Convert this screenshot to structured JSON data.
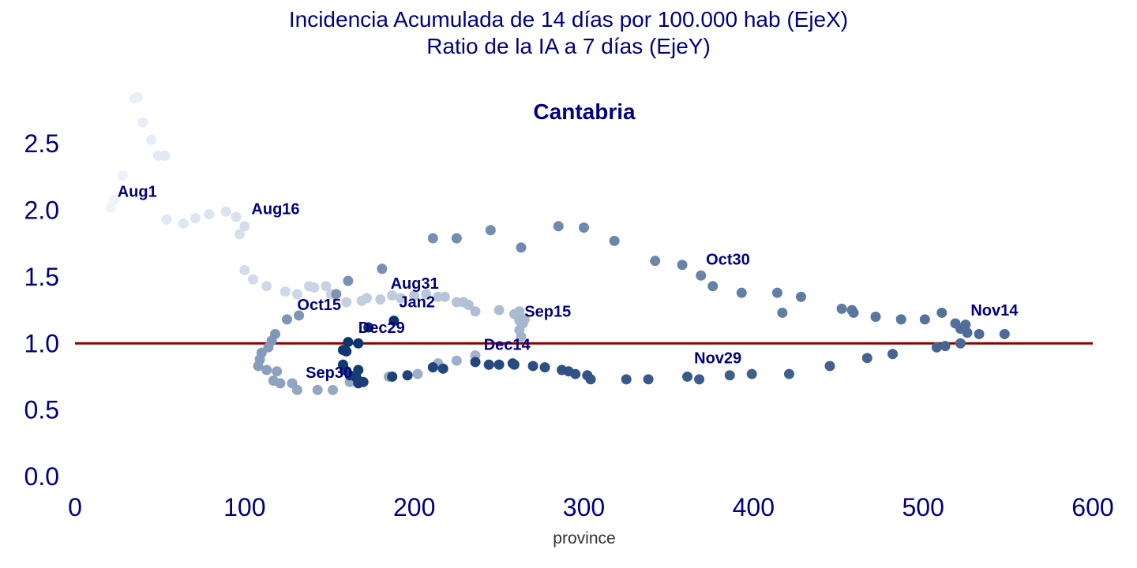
{
  "figure": {
    "title_line1": "Incidencia Acumulada de 14 días por 100.000 hab (EjeX)",
    "title_line2": "Ratio de la IA a 7 días (EjeY)"
  },
  "chart_data": {
    "type": "scatter",
    "title": "Cantabria",
    "xlabel": "province",
    "ylabel": "",
    "xlim": [
      0,
      600
    ],
    "ylim": [
      0.0,
      2.75
    ],
    "x_ticks": [
      0,
      100,
      200,
      300,
      400,
      500,
      600
    ],
    "y_ticks": [
      0.0,
      0.5,
      1.0,
      1.5,
      2.0,
      2.5
    ],
    "x_tick_labels": [
      "0",
      "100",
      "200",
      "300",
      "400",
      "500",
      "600"
    ],
    "y_tick_labels": [
      "0.0",
      "0.5",
      "1.0",
      "1.5",
      "2.0",
      "2.5"
    ],
    "grid": false,
    "reference_line": {
      "y": 1.0,
      "color": "#8b0000"
    },
    "colormap": {
      "from": "#eef4fb",
      "to": "#08306b"
    },
    "points": [
      {
        "x": 21,
        "y": 2.02
      },
      {
        "x": 23,
        "y": 2.08
      },
      {
        "x": 28,
        "y": 2.26
      },
      {
        "x": 35,
        "y": 2.84
      },
      {
        "x": 37,
        "y": 2.85
      },
      {
        "x": 40,
        "y": 2.66
      },
      {
        "x": 45,
        "y": 2.53
      },
      {
        "x": 49,
        "y": 2.41
      },
      {
        "x": 53,
        "y": 2.41
      },
      {
        "x": 54,
        "y": 1.93
      },
      {
        "x": 64,
        "y": 1.9
      },
      {
        "x": 71,
        "y": 1.94
      },
      {
        "x": 79,
        "y": 1.97
      },
      {
        "x": 89,
        "y": 1.99
      },
      {
        "x": 95,
        "y": 1.95
      },
      {
        "x": 97,
        "y": 1.82
      },
      {
        "x": 100,
        "y": 1.88
      },
      {
        "x": 100,
        "y": 1.55
      },
      {
        "x": 105,
        "y": 1.48
      },
      {
        "x": 113,
        "y": 1.43
      },
      {
        "x": 124,
        "y": 1.39
      },
      {
        "x": 131,
        "y": 1.37
      },
      {
        "x": 138,
        "y": 1.43
      },
      {
        "x": 141,
        "y": 1.42
      },
      {
        "x": 148,
        "y": 1.43
      },
      {
        "x": 151,
        "y": 1.37
      },
      {
        "x": 160,
        "y": 1.31
      },
      {
        "x": 169,
        "y": 1.32
      },
      {
        "x": 172,
        "y": 1.34
      },
      {
        "x": 180,
        "y": 1.33
      },
      {
        "x": 187,
        "y": 1.36
      },
      {
        "x": 192,
        "y": 1.34
      },
      {
        "x": 200,
        "y": 1.36
      },
      {
        "x": 207,
        "y": 1.37
      },
      {
        "x": 214,
        "y": 1.35
      },
      {
        "x": 218,
        "y": 1.35
      },
      {
        "x": 225,
        "y": 1.31
      },
      {
        "x": 229,
        "y": 1.31
      },
      {
        "x": 232,
        "y": 1.29
      },
      {
        "x": 236,
        "y": 1.24
      },
      {
        "x": 250,
        "y": 1.25
      },
      {
        "x": 259,
        "y": 1.22
      },
      {
        "x": 262,
        "y": 1.24
      },
      {
        "x": 262,
        "y": 1.17
      },
      {
        "x": 265,
        "y": 1.18
      },
      {
        "x": 264,
        "y": 1.15
      },
      {
        "x": 262,
        "y": 1.1
      },
      {
        "x": 263,
        "y": 1.05
      },
      {
        "x": 236,
        "y": 0.91
      },
      {
        "x": 225,
        "y": 0.87
      },
      {
        "x": 214,
        "y": 0.85
      },
      {
        "x": 202,
        "y": 0.77
      },
      {
        "x": 185,
        "y": 0.75
      },
      {
        "x": 169,
        "y": 0.71
      },
      {
        "x": 162,
        "y": 0.71
      },
      {
        "x": 152,
        "y": 0.65
      },
      {
        "x": 143,
        "y": 0.65
      },
      {
        "x": 131,
        "y": 0.65
      },
      {
        "x": 128,
        "y": 0.7
      },
      {
        "x": 121,
        "y": 0.7
      },
      {
        "x": 117,
        "y": 0.72
      },
      {
        "x": 119,
        "y": 0.79
      },
      {
        "x": 113,
        "y": 0.8
      },
      {
        "x": 108,
        "y": 0.83
      },
      {
        "x": 109,
        "y": 0.88
      },
      {
        "x": 110,
        "y": 0.93
      },
      {
        "x": 114,
        "y": 0.97
      },
      {
        "x": 116,
        "y": 1.02
      },
      {
        "x": 118,
        "y": 1.07
      },
      {
        "x": 125,
        "y": 1.18
      },
      {
        "x": 132,
        "y": 1.21
      },
      {
        "x": 154,
        "y": 1.37
      },
      {
        "x": 161,
        "y": 1.47
      },
      {
        "x": 181,
        "y": 1.56
      },
      {
        "x": 211,
        "y": 1.79
      },
      {
        "x": 225,
        "y": 1.79
      },
      {
        "x": 245,
        "y": 1.85
      },
      {
        "x": 263,
        "y": 1.72
      },
      {
        "x": 285,
        "y": 1.88
      },
      {
        "x": 300,
        "y": 1.87
      },
      {
        "x": 318,
        "y": 1.77
      },
      {
        "x": 342,
        "y": 1.62
      },
      {
        "x": 358,
        "y": 1.59
      },
      {
        "x": 369,
        "y": 1.51
      },
      {
        "x": 376,
        "y": 1.43
      },
      {
        "x": 393,
        "y": 1.38
      },
      {
        "x": 414,
        "y": 1.38
      },
      {
        "x": 417,
        "y": 1.23
      },
      {
        "x": 428,
        "y": 1.35
      },
      {
        "x": 452,
        "y": 1.26
      },
      {
        "x": 458,
        "y": 1.25
      },
      {
        "x": 459,
        "y": 1.23
      },
      {
        "x": 472,
        "y": 1.2
      },
      {
        "x": 487,
        "y": 1.18
      },
      {
        "x": 501,
        "y": 1.18
      },
      {
        "x": 511,
        "y": 1.23
      },
      {
        "x": 519,
        "y": 1.15
      },
      {
        "x": 522,
        "y": 1.11
      },
      {
        "x": 525,
        "y": 1.14
      },
      {
        "x": 526,
        "y": 1.08
      },
      {
        "x": 533,
        "y": 1.07
      },
      {
        "x": 548,
        "y": 1.07
      },
      {
        "x": 522,
        "y": 1.0
      },
      {
        "x": 513,
        "y": 0.98
      },
      {
        "x": 508,
        "y": 0.97
      },
      {
        "x": 482,
        "y": 0.92
      },
      {
        "x": 467,
        "y": 0.89
      },
      {
        "x": 445,
        "y": 0.83
      },
      {
        "x": 421,
        "y": 0.77
      },
      {
        "x": 399,
        "y": 0.77
      },
      {
        "x": 386,
        "y": 0.76
      },
      {
        "x": 368,
        "y": 0.73
      },
      {
        "x": 361,
        "y": 0.75
      },
      {
        "x": 338,
        "y": 0.73
      },
      {
        "x": 325,
        "y": 0.73
      },
      {
        "x": 304,
        "y": 0.73
      },
      {
        "x": 302,
        "y": 0.76
      },
      {
        "x": 295,
        "y": 0.77
      },
      {
        "x": 291,
        "y": 0.79
      },
      {
        "x": 287,
        "y": 0.8
      },
      {
        "x": 277,
        "y": 0.82
      },
      {
        "x": 270,
        "y": 0.83
      },
      {
        "x": 259,
        "y": 0.84
      },
      {
        "x": 258,
        "y": 0.85
      },
      {
        "x": 250,
        "y": 0.84
      },
      {
        "x": 244,
        "y": 0.84
      },
      {
        "x": 236,
        "y": 0.86
      },
      {
        "x": 217,
        "y": 0.81
      },
      {
        "x": 211,
        "y": 0.82
      },
      {
        "x": 196,
        "y": 0.76
      },
      {
        "x": 187,
        "y": 0.75
      },
      {
        "x": 170,
        "y": 0.71
      },
      {
        "x": 167,
        "y": 0.7
      },
      {
        "x": 166,
        "y": 0.74
      },
      {
        "x": 167,
        "y": 0.8
      },
      {
        "x": 162,
        "y": 0.76
      },
      {
        "x": 159,
        "y": 0.8
      },
      {
        "x": 158,
        "y": 0.84
      },
      {
        "x": 158,
        "y": 0.95
      },
      {
        "x": 160,
        "y": 0.94
      },
      {
        "x": 161,
        "y": 1.01
      },
      {
        "x": 167,
        "y": 1.0
      },
      {
        "x": 173,
        "y": 1.12
      },
      {
        "x": 188,
        "y": 1.17
      }
    ],
    "annotations": [
      {
        "text": "Aug1",
        "x": 25,
        "y": 2.1
      },
      {
        "text": "Aug16",
        "x": 104,
        "y": 1.97
      },
      {
        "text": "Aug31",
        "x": 186,
        "y": 1.41
      },
      {
        "text": "Sep15",
        "x": 265,
        "y": 1.2
      },
      {
        "text": "Sep30",
        "x": 136,
        "y": 0.74
      },
      {
        "text": "Oct15",
        "x": 131,
        "y": 1.25
      },
      {
        "text": "Oct30",
        "x": 372,
        "y": 1.59
      },
      {
        "text": "Nov14",
        "x": 528,
        "y": 1.21
      },
      {
        "text": "Nov29",
        "x": 365,
        "y": 0.85
      },
      {
        "text": "Dec14",
        "x": 241,
        "y": 0.95
      },
      {
        "text": "Dec29",
        "x": 167,
        "y": 1.08
      },
      {
        "text": "Jan2",
        "x": 191,
        "y": 1.27
      }
    ]
  }
}
